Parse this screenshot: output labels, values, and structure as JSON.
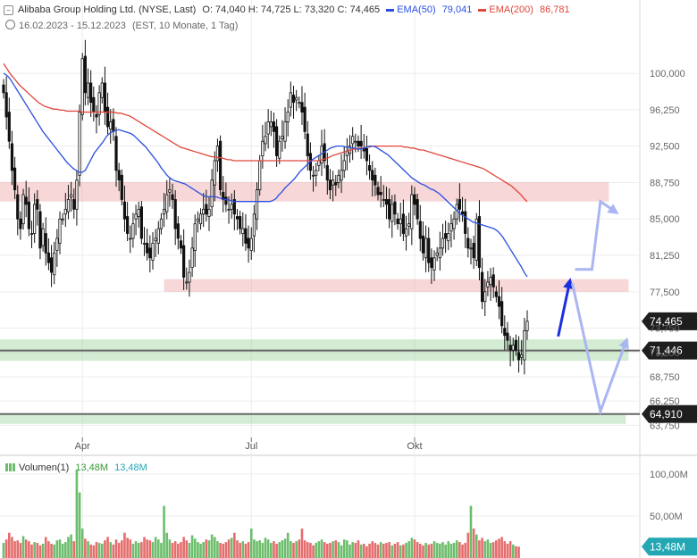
{
  "header": {
    "title": "Alibaba Group Holding Ltd. (NYSE, Last)",
    "ohlc": "O: 74,040   H: 74,725   L: 73,320   C: 74,465",
    "ema50_label": "EMA(50)",
    "ema50_value": "79,041",
    "ema200_label": "EMA(200)",
    "ema200_value": "86,781",
    "range": "16.02.2023 - 15.12.2023",
    "settings": "(EST, 10 Monate, 1 Tag)"
  },
  "volume_header": {
    "label": "Volumen(1)",
    "value1": "13,48M",
    "value2": "13,48M"
  },
  "colors": {
    "up": "#6cbd6c",
    "down": "#e56d6d",
    "ema50": "#2a4fe0",
    "ema200": "#e0463a",
    "red_zone": "rgba(233,150,150,0.38)",
    "green_zone": "rgba(140,205,140,0.38)",
    "arrow_dark": "#1a2fe0",
    "arrow_light": "#aab6f2",
    "badge_dark": "#1e1e1e",
    "badge_blue": "#23a7b5"
  },
  "chart_data": {
    "type": "candlestick",
    "ylim": [
      62.5,
      103.5
    ],
    "yticks": [
      "100,000",
      "96,250",
      "92,500",
      "88,750",
      "85,000",
      "81,250",
      "77,500",
      "73,750",
      "71,250",
      "68,750",
      "66,250",
      "63,750"
    ],
    "yticks_values": [
      100,
      96.25,
      92.5,
      88.75,
      85,
      81.25,
      77.5,
      73.75,
      71.25,
      68.75,
      66.25,
      63.75
    ],
    "xticks": [
      "Apr",
      "Jul",
      "Okt"
    ],
    "xticks_index": [
      28,
      88,
      146
    ],
    "last_price": {
      "value": 74.465,
      "label": "74,465"
    },
    "levels": [
      {
        "value": 71.446,
        "label": "71,446"
      },
      {
        "value": 64.91,
        "label": "64,910"
      }
    ],
    "zones": [
      {
        "kind": "resistance",
        "from": 86.8,
        "to": 88.8,
        "start_index": 0,
        "end_index": 215
      },
      {
        "kind": "resistance",
        "from": 77.5,
        "to": 78.8,
        "start_index": 57,
        "end_index": 222
      },
      {
        "kind": "support",
        "from": 70.4,
        "to": 72.6,
        "start_index": 0,
        "end_index": 222
      },
      {
        "kind": "support",
        "from": 63.9,
        "to": 64.9,
        "start_index": 0,
        "end_index": 221
      }
    ],
    "closes": [
      98,
      95.5,
      93,
      90,
      88,
      85,
      84,
      87.5,
      86.5,
      84,
      83.5,
      86.5,
      86,
      82,
      84,
      81.5,
      80.5,
      79.5,
      81.5,
      83,
      85,
      85,
      86,
      87,
      87.5,
      86,
      89,
      96,
      101.5,
      98,
      99,
      97,
      96,
      95.5,
      98,
      99,
      96,
      94.5,
      95,
      94,
      90,
      89,
      87,
      85,
      83.5,
      83,
      84.5,
      85.5,
      86,
      83,
      82.5,
      81.5,
      81,
      82.5,
      83,
      84,
      85,
      86,
      87.5,
      88,
      87,
      84,
      83,
      82,
      79,
      78.5,
      79.5,
      82,
      84.5,
      85,
      85.5,
      86,
      85.5,
      86,
      89,
      91,
      92.5,
      88,
      87,
      86.5,
      86,
      86.5,
      85.5,
      85,
      84,
      84,
      82.5,
      82,
      83,
      85.5,
      88,
      91,
      93,
      93.5,
      95,
      95,
      94,
      91.5,
      93,
      93.5,
      95,
      96,
      98,
      97,
      97.5,
      97,
      96,
      94,
      91.5,
      90,
      89.5,
      90,
      91,
      92.5,
      91,
      89,
      88,
      89,
      88.5,
      89.5,
      90,
      91,
      92,
      92.5,
      93.5,
      93,
      92.5,
      92.5,
      92,
      91,
      90,
      89,
      88.5,
      87.5,
      87.5,
      87,
      86.5,
      85,
      86.5,
      85.5,
      84.5,
      85,
      83.5,
      84,
      84.5,
      87.5,
      86.5,
      85,
      83,
      81.5,
      83,
      80.5,
      80,
      81,
      81.5,
      82,
      83,
      83,
      83.5,
      84.5,
      85,
      86.5,
      86,
      85.5,
      83.5,
      82,
      82,
      81,
      85,
      80,
      76.5,
      77.5,
      78.5,
      79,
      78,
      77,
      76,
      74,
      73,
      72.5,
      71.5,
      72,
      71.5,
      70.5,
      71,
      73.5,
      74.465
    ],
    "ema50": [
      100,
      99.8,
      99.5,
      99,
      98.5,
      98,
      97.5,
      97,
      96.5,
      96,
      95.5,
      95,
      94.5,
      94,
      93.6,
      93.2,
      92.8,
      92.4,
      92,
      91.6,
      91.2,
      90.8,
      90.5,
      90.2,
      90,
      89.8,
      89.8,
      90,
      90.6,
      91.2,
      91.8,
      92.2,
      92.6,
      93,
      93.5,
      93.8,
      94,
      94.1,
      94.2,
      94.1,
      94,
      93.9,
      93.8,
      93.6,
      93.3,
      93,
      92.7,
      92.4,
      92,
      91.6,
      91.2,
      90.8,
      90.3,
      89.9,
      89.5,
      89.2,
      89,
      88.9,
      88.8,
      88.7,
      88.6,
      88.4,
      88.2,
      88,
      87.8,
      87.6,
      87.4,
      87.3,
      87.3,
      87.3,
      87.3,
      87.2,
      87.1,
      87,
      87,
      86.9,
      86.8,
      86.8,
      86.8,
      86.8,
      86.8,
      86.8,
      86.8,
      86.8,
      86.8,
      86.8,
      86.8,
      86.8,
      86.8,
      86.9,
      87.1,
      87.5,
      87.8,
      88.2,
      88.5,
      88.8,
      89.1,
      89.5,
      89.9,
      90.2,
      90.5,
      90.8,
      91.1,
      91.3,
      91.5,
      91.7,
      91.9,
      92.1,
      92.3,
      92.4,
      92.5,
      92.5,
      92.5,
      92.4,
      92.4,
      92.3,
      92.3,
      92.2,
      92.2,
      92.3,
      92.4,
      92.5,
      92.5,
      92.4,
      92.2,
      92,
      91.8,
      91.6,
      91.3,
      91,
      90.7,
      90.4,
      90.1,
      89.8,
      89.5,
      89.2,
      89,
      88.8,
      88.6,
      88.5,
      88.3,
      88.1,
      88,
      87.8,
      87.6,
      87.3,
      87,
      86.7,
      86.4,
      86.1,
      85.8,
      85.5,
      85.3,
      85.1,
      84.9,
      84.7,
      84.6,
      84.5,
      84.4,
      84.3,
      84.2,
      84.1,
      84,
      83.8,
      83.5,
      83.1,
      82.6,
      82.1,
      81.6,
      81.1,
      80.6,
      80.1,
      79.5,
      79.041
    ],
    "ema200": [
      101,
      100.5,
      100,
      99.6,
      99.2,
      98.8,
      98.5,
      98.2,
      97.9,
      97.6,
      97.3,
      97,
      96.8,
      96.6,
      96.5,
      96.4,
      96.3,
      96.3,
      96.2,
      96.2,
      96.1,
      96.1,
      96.1,
      96.1,
      96.1,
      96,
      96,
      96,
      96,
      96,
      96,
      96,
      96,
      96,
      96,
      96,
      95.9,
      95.9,
      95.8,
      95.7,
      95.6,
      95.4,
      95.2,
      95,
      94.8,
      94.6,
      94.4,
      94.2,
      94,
      93.8,
      93.6,
      93.4,
      93.2,
      93,
      92.8,
      92.6,
      92.4,
      92.3,
      92.2,
      92.1,
      92,
      91.9,
      91.8,
      91.7,
      91.6,
      91.5,
      91.4,
      91.4,
      91.3,
      91.3,
      91.2,
      91.1,
      91.1,
      91,
      91,
      91,
      91,
      91,
      91,
      91,
      91,
      91,
      91,
      91,
      91,
      91,
      91,
      91,
      91,
      91,
      91,
      91,
      91,
      91,
      91,
      91,
      91,
      91,
      91,
      91,
      91,
      91.1,
      91.2,
      91.3,
      91.5,
      91.6,
      91.7,
      91.8,
      91.9,
      92,
      92.1,
      92.2,
      92.2,
      92.3,
      92.3,
      92.4,
      92.4,
      92.5,
      92.5,
      92.5,
      92.5,
      92.5,
      92.5,
      92.5,
      92.5,
      92.5,
      92.5,
      92.4,
      92.4,
      92.3,
      92.3,
      92.2,
      92.1,
      92.1,
      92,
      91.9,
      91.8,
      91.7,
      91.6,
      91.5,
      91.4,
      91.3,
      91.2,
      91.1,
      91,
      90.9,
      90.8,
      90.7,
      90.6,
      90.5,
      90.4,
      90.3,
      90.2,
      90,
      89.8,
      89.6,
      89.4,
      89.2,
      89,
      88.8,
      88.6,
      88.4,
      88.1,
      87.8,
      87.5,
      87.1,
      86.781
    ],
    "ema200_first_index": 0,
    "ema50_first_index": 0,
    "arrows": [
      {
        "style": "solid",
        "points": [
          [
            197,
            72.9
          ],
          [
            201,
            78.4
          ]
        ]
      },
      {
        "style": "light",
        "points": [
          [
            202,
            78.4
          ],
          [
            212,
            65.2
          ],
          [
            221,
            72.3
          ]
        ]
      },
      {
        "style": "light",
        "points": [
          [
            203,
            79.8
          ],
          [
            209,
            79.8
          ],
          [
            212,
            86.8
          ],
          [
            217,
            85.8
          ]
        ]
      }
    ],
    "volume": {
      "ylim": [
        0,
        120
      ],
      "yticks": [
        "100,00M",
        "50,00M"
      ],
      "yticks_values": [
        100,
        50
      ],
      "last_value": "13,48M",
      "values": [
        18,
        22,
        30,
        25,
        20,
        21,
        18,
        26,
        22,
        20,
        16,
        19,
        18,
        15,
        17,
        25,
        20,
        17,
        16,
        21,
        22,
        17,
        19,
        25,
        28,
        20,
        105,
        78,
        35,
        23,
        20,
        16,
        15,
        19,
        18,
        17,
        21,
        25,
        19,
        16,
        22,
        18,
        21,
        30,
        24,
        22,
        17,
        20,
        18,
        19,
        25,
        22,
        21,
        19,
        25,
        22,
        18,
        62,
        30,
        22,
        18,
        20,
        17,
        19,
        25,
        21,
        18,
        27,
        23,
        19,
        17,
        19,
        22,
        21,
        28,
        25,
        20,
        18,
        17,
        19,
        22,
        24,
        30,
        21,
        18,
        20,
        17,
        19,
        35,
        22,
        20,
        21,
        18,
        24,
        22,
        18,
        20,
        17,
        19,
        21,
        23,
        30,
        20,
        18,
        20,
        22,
        35,
        21,
        19,
        18,
        15,
        18,
        20,
        22,
        19,
        17,
        18,
        20,
        21,
        19,
        15,
        22,
        21,
        16,
        19,
        18,
        21,
        16,
        17,
        14,
        17,
        20,
        18,
        16,
        19,
        17,
        18,
        19,
        15,
        17,
        19,
        15,
        16,
        18,
        20,
        24,
        22,
        19,
        17,
        15,
        18,
        16,
        17,
        20,
        18,
        17,
        19,
        16,
        20,
        17,
        18,
        21,
        19,
        16,
        18,
        30,
        62,
        35,
        28,
        21,
        24,
        20,
        22,
        18,
        19,
        21,
        23,
        25,
        20,
        17,
        20,
        16,
        14,
        13.48
      ]
    }
  }
}
